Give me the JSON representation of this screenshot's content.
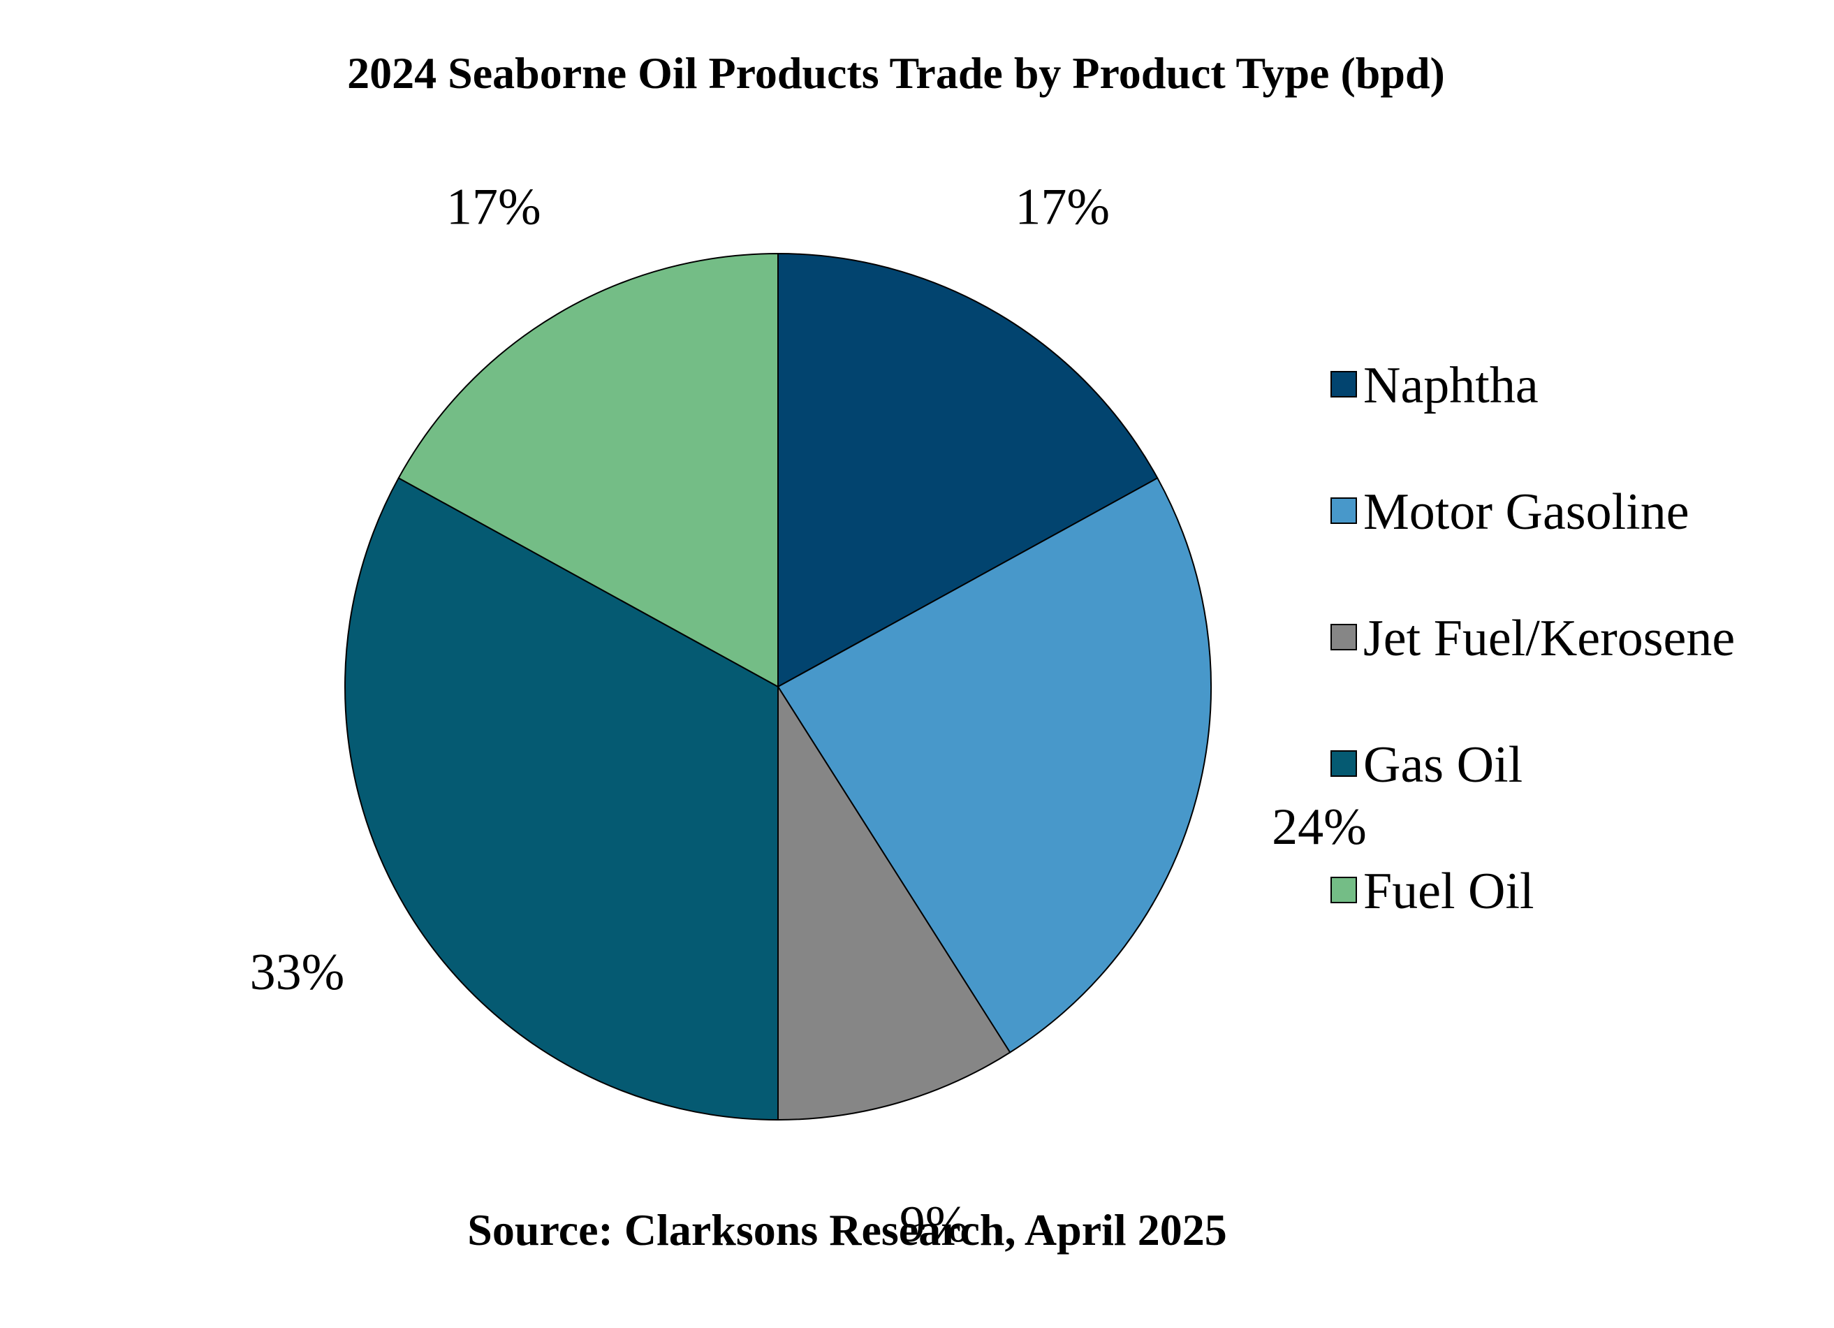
{
  "chart_data": {
    "type": "pie",
    "title": "2024 Seaborne Oil Products Trade by Product Type (bpd)",
    "source": "Source: Clarksons Research, April 2025",
    "legend_position": "right",
    "slices": [
      {
        "name": "Naphtha",
        "value": 17,
        "label": "17%",
        "color": "#02446f"
      },
      {
        "name": "Motor Gasoline",
        "value": 24,
        "label": "24%",
        "color": "#4898ca"
      },
      {
        "name": "Jet Fuel/Kerosene",
        "value": 9,
        "label": "9%",
        "color": "#868686"
      },
      {
        "name": "Gas Oil",
        "value": 33,
        "label": "33%",
        "color": "#055a72"
      },
      {
        "name": "Fuel Oil",
        "value": 17,
        "label": "17%",
        "color": "#74bd86"
      }
    ]
  }
}
